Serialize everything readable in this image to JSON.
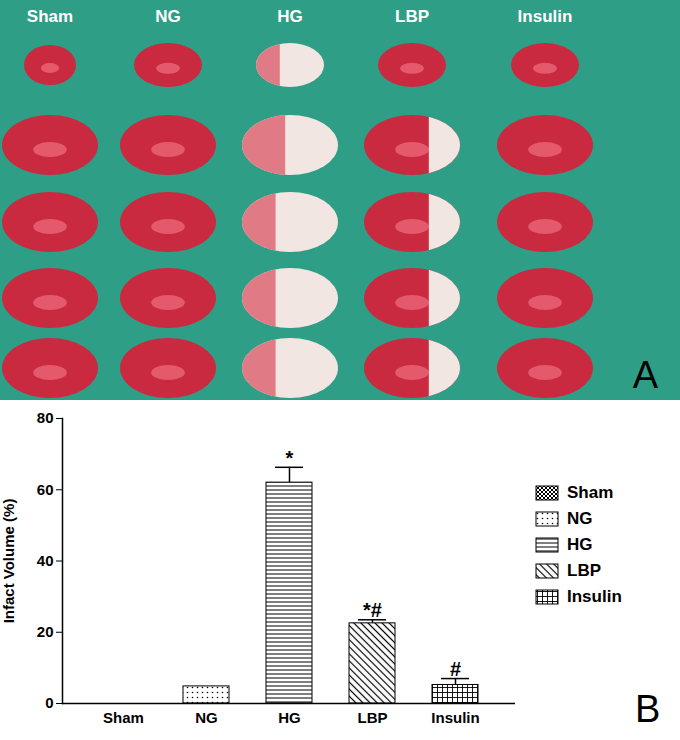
{
  "photo_panel": {
    "label": "A",
    "columns": [
      "Sham",
      "NG",
      "HG",
      "LBP",
      "Insulin"
    ]
  },
  "chart_data": {
    "type": "bar",
    "panel_label": "B",
    "categories": [
      "Sham",
      "NG",
      "HG",
      "LBP",
      "Insulin"
    ],
    "values": [
      0,
      4.8,
      62,
      22.5,
      5.2
    ],
    "errors": [
      0,
      0,
      4.3,
      1.0,
      1.8
    ],
    "annotations": [
      null,
      null,
      "*",
      "*#",
      "#"
    ],
    "y_label": "Infact Volume (%)",
    "ylim": [
      0,
      80
    ],
    "yticks": [
      0,
      20,
      40,
      60,
      80
    ],
    "color": "#000000",
    "legend": "right",
    "grid": false
  }
}
